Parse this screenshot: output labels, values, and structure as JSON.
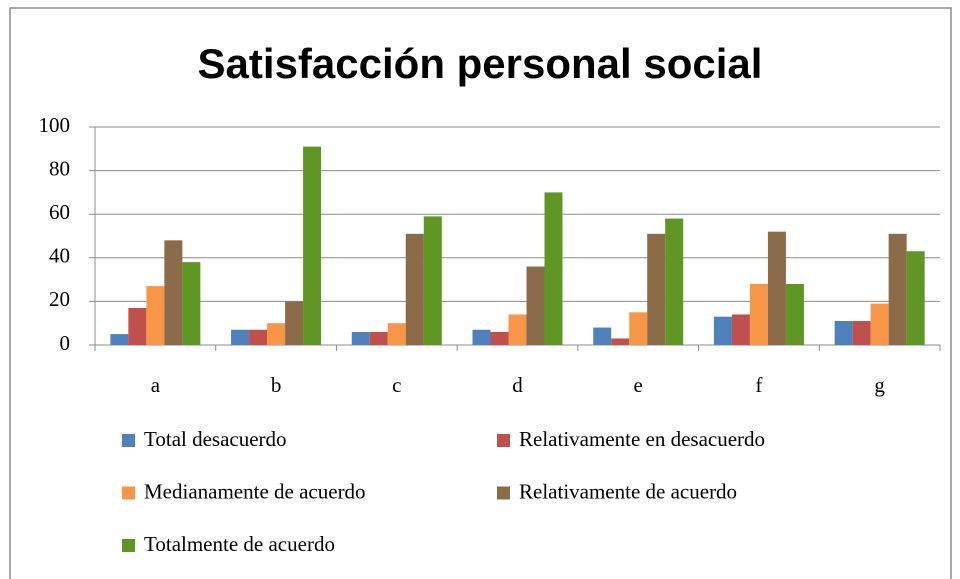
{
  "chart_data": {
    "type": "bar",
    "title": "Satisfacción personal social",
    "categories": [
      "a",
      "b",
      "c",
      "d",
      "e",
      "f",
      "g"
    ],
    "series": [
      {
        "name": "Total desacuerdo",
        "color": "#4f81bd",
        "values": [
          5,
          7,
          6,
          7,
          8,
          13,
          11
        ]
      },
      {
        "name": "Relativamente en desacuerdo",
        "color": "#c0504d",
        "values": [
          17,
          7,
          6,
          6,
          3,
          14,
          11
        ]
      },
      {
        "name": "Medianamente de acuerdo",
        "color": "#f79646",
        "values": [
          27,
          10,
          10,
          14,
          15,
          28,
          19
        ]
      },
      {
        "name": "Relativamente de acuerdo",
        "color": "#8c6b4b",
        "values": [
          48,
          20,
          51,
          36,
          51,
          52,
          51
        ]
      },
      {
        "name": "Totalmente de acuerdo",
        "color": "#609624",
        "values": [
          38,
          91,
          59,
          70,
          58,
          28,
          43
        ]
      }
    ],
    "ylim": [
      0,
      100
    ],
    "yticks": [
      0,
      20,
      40,
      60,
      80,
      100
    ],
    "grid": true,
    "legend": "bottom"
  }
}
